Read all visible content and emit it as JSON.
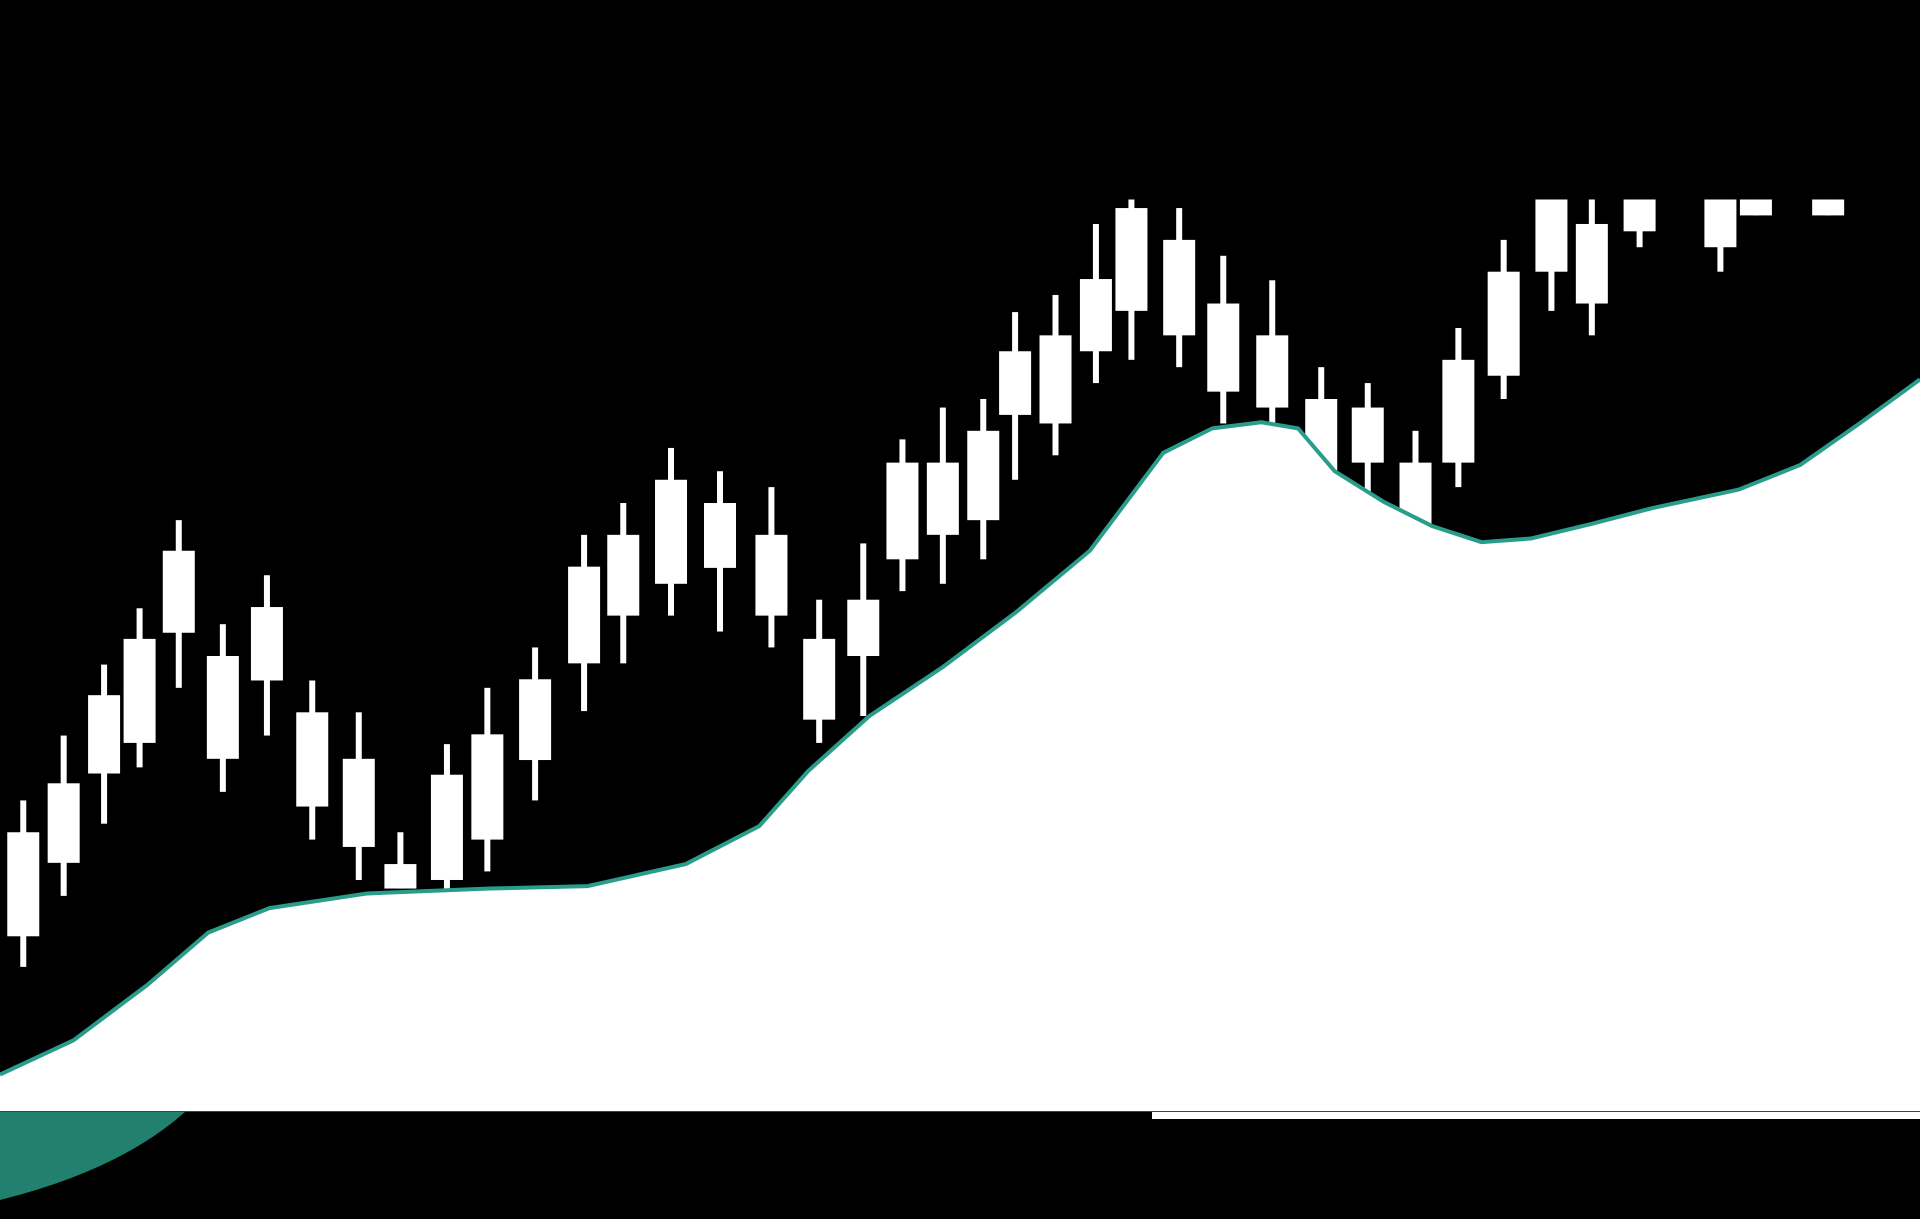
{
  "chart_data": {
    "type": "candlestick",
    "x": [
      19,
      52,
      85,
      114,
      146,
      182,
      218,
      255,
      293,
      327,
      365,
      398,
      437,
      477,
      509,
      548,
      588,
      630,
      669,
      705,
      737,
      770,
      803,
      829,
      862,
      895,
      924,
      963,
      999,
      1039,
      1079,
      1117,
      1156,
      1191,
      1228,
      1267,
      1300,
      1339,
      1405,
      1434,
      1493
    ],
    "open": [
      231,
      291,
      364,
      389,
      479,
      376,
      440,
      337,
      304,
      270,
      277,
      310,
      375,
      454,
      493,
      519,
      532,
      493,
      408,
      460,
      539,
      559,
      571,
      657,
      650,
      709,
      742,
      722,
      676,
      663,
      611,
      618,
      565,
      618,
      689,
      774,
      748,
      807,
      794,
      820,
      820
    ],
    "high": [
      342,
      395,
      453,
      499,
      571,
      486,
      526,
      440,
      414,
      316,
      388,
      434,
      467,
      559,
      585,
      630,
      611,
      598,
      506,
      552,
      637,
      663,
      670,
      741,
      755,
      813,
      833,
      826,
      787,
      767,
      696,
      683,
      644,
      728,
      800,
      833,
      833,
      833,
      833,
      833,
      833
    ],
    "low": [
      206,
      264,
      323,
      369,
      434,
      349,
      395,
      310,
      277,
      270,
      270,
      284,
      342,
      415,
      454,
      493,
      480,
      467,
      389,
      411,
      513,
      519,
      539,
      604,
      624,
      683,
      702,
      696,
      650,
      638,
      604,
      591,
      565,
      598,
      670,
      742,
      722,
      794,
      774,
      820,
      820
    ],
    "close": [
      316,
      356,
      428,
      474,
      546,
      460,
      500,
      414,
      376,
      290,
      363,
      396,
      441,
      533,
      559,
      604,
      585,
      559,
      474,
      506,
      618,
      618,
      644,
      709,
      722,
      768,
      826,
      800,
      748,
      722,
      670,
      663,
      618,
      702,
      774,
      833,
      813,
      833,
      833,
      833,
      833
    ],
    "color": "#ffffff",
    "area": {
      "x": [
        0,
        60,
        120,
        170,
        220,
        300,
        400,
        480,
        560,
        620,
        660,
        710,
        770,
        830,
        890,
        920,
        950,
        990,
        1030,
        1060,
        1090,
        1130,
        1170,
        1210,
        1250,
        1300,
        1350,
        1420,
        1470,
        1520,
        1568
      ],
      "values": [
        118,
        146,
        191,
        234,
        254,
        266,
        270,
        272,
        290,
        321,
        366,
        411,
        451,
        496,
        546,
        586,
        626,
        646,
        651,
        646,
        611,
        586,
        566,
        553,
        556,
        568,
        581,
        596,
        616,
        651,
        686
      ],
      "base": 88,
      "color": "#ffffff",
      "edge_color": "#2a9d8a"
    },
    "xlim": [
      0,
      1568
    ],
    "ylim": [
      0,
      996
    ]
  }
}
